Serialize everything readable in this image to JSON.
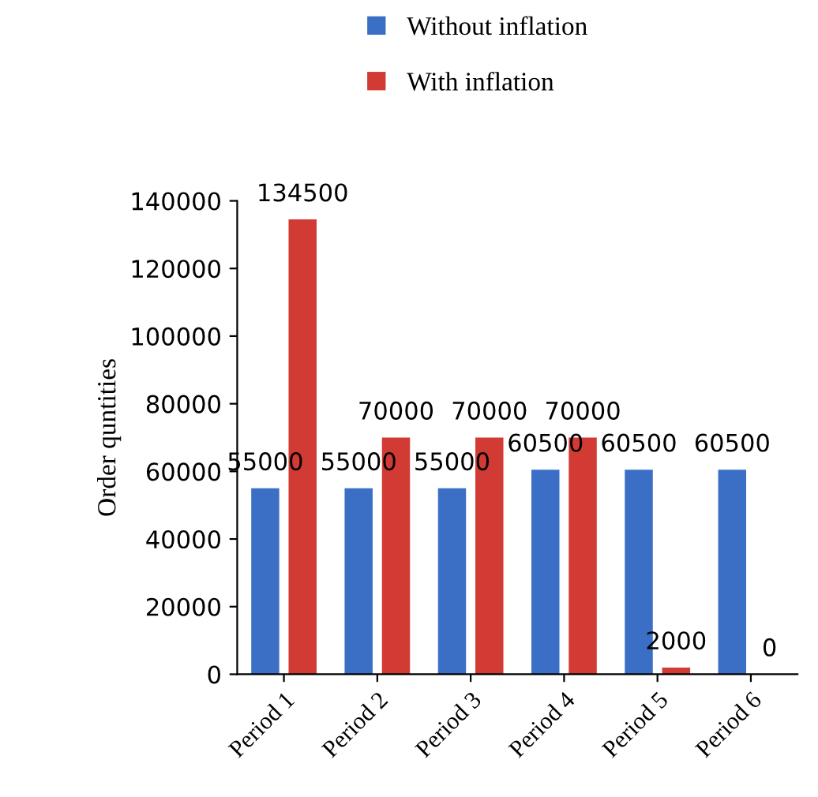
{
  "chart_data": {
    "type": "bar",
    "ylabel": "Order quntities",
    "categories": [
      "Period 1",
      "Period 2",
      "Period 3",
      "Period 4",
      "Period 5",
      "Period 6"
    ],
    "series": [
      {
        "name": "Without inflation",
        "color": "#3b6fc6",
        "values": [
          55000,
          55000,
          55000,
          60500,
          60500,
          60500
        ]
      },
      {
        "name": "With inflation",
        "color": "#d23a34",
        "values": [
          134500,
          70000,
          70000,
          70000,
          2000,
          0
        ]
      }
    ],
    "ylim": [
      0,
      140000
    ],
    "yticks": [
      0,
      20000,
      40000,
      60000,
      80000,
      100000,
      120000,
      140000
    ],
    "data_labels": true,
    "legend": "top",
    "grid": false
  }
}
